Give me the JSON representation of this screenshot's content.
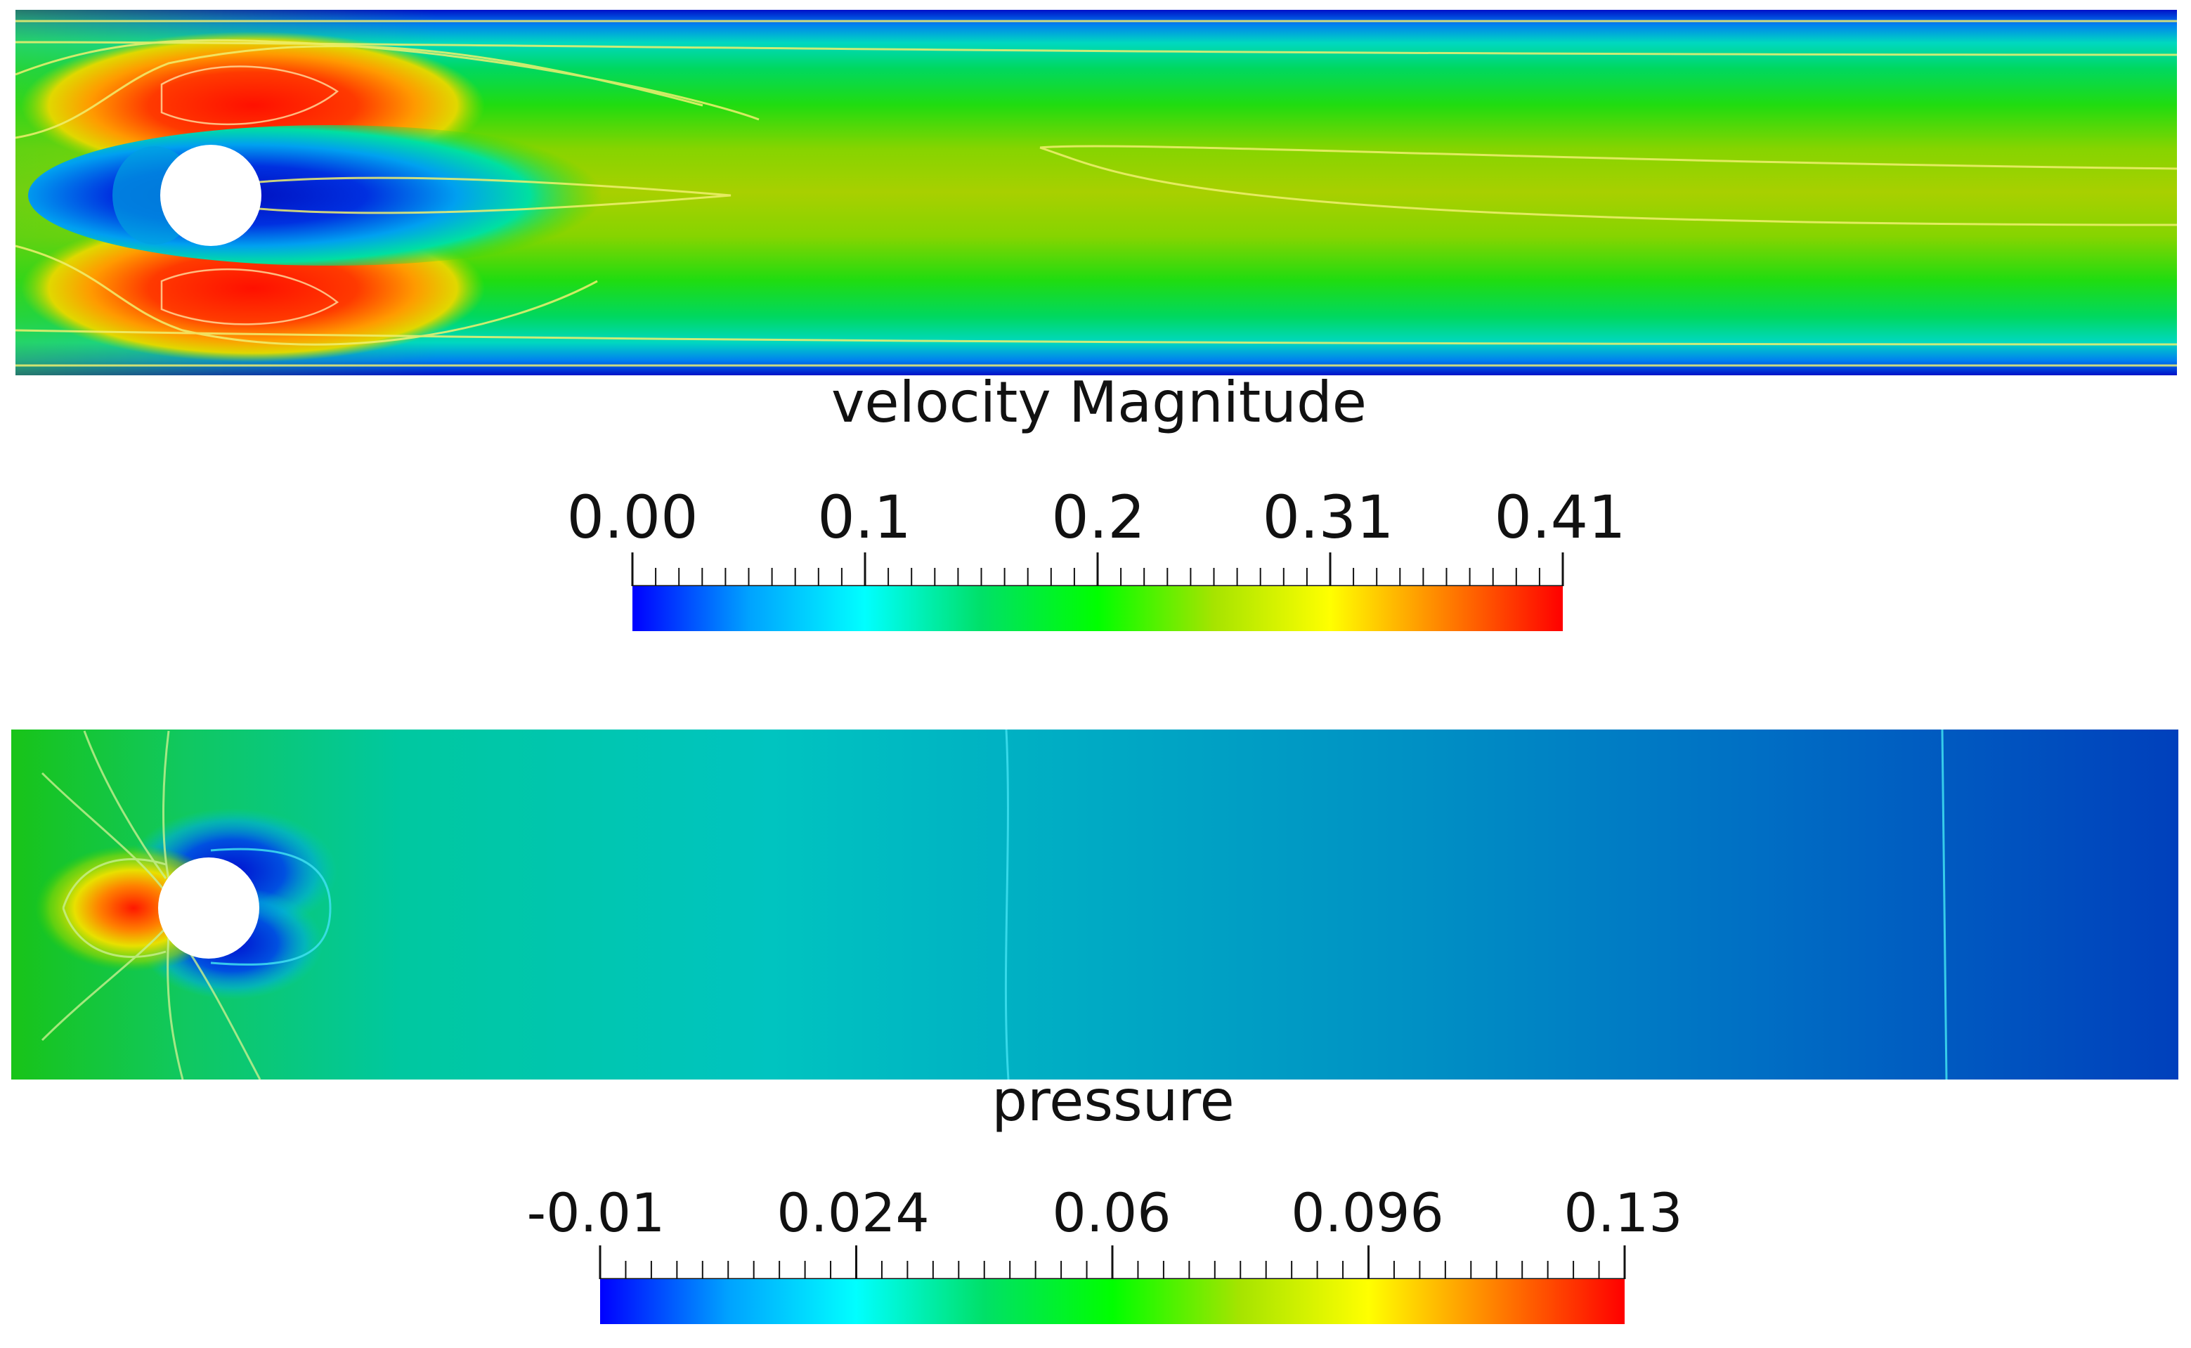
{
  "figure": {
    "velocity": {
      "title": "velocity Magnitude",
      "tick_labels": [
        "0.00",
        "0.1",
        "0.2",
        "0.31",
        "0.41"
      ],
      "range": [
        0.0,
        0.41
      ],
      "colormap": [
        "#0000ff",
        "#00a2ff",
        "#00ffff",
        "#00e068",
        "#00ff00",
        "#a6e400",
        "#ffff00",
        "#ff7f00",
        "#ff0000"
      ]
    },
    "pressure": {
      "title": "pressure",
      "tick_labels": [
        "-0.01",
        "0.024",
        "0.06",
        "0.096",
        "0.13"
      ],
      "range": [
        -0.01,
        0.13
      ],
      "colormap": [
        "#0000ff",
        "#00a2ff",
        "#00ffff",
        "#00e068",
        "#00ff00",
        "#a6e400",
        "#ffff00",
        "#ff7f00",
        "#ff0000"
      ]
    }
  }
}
